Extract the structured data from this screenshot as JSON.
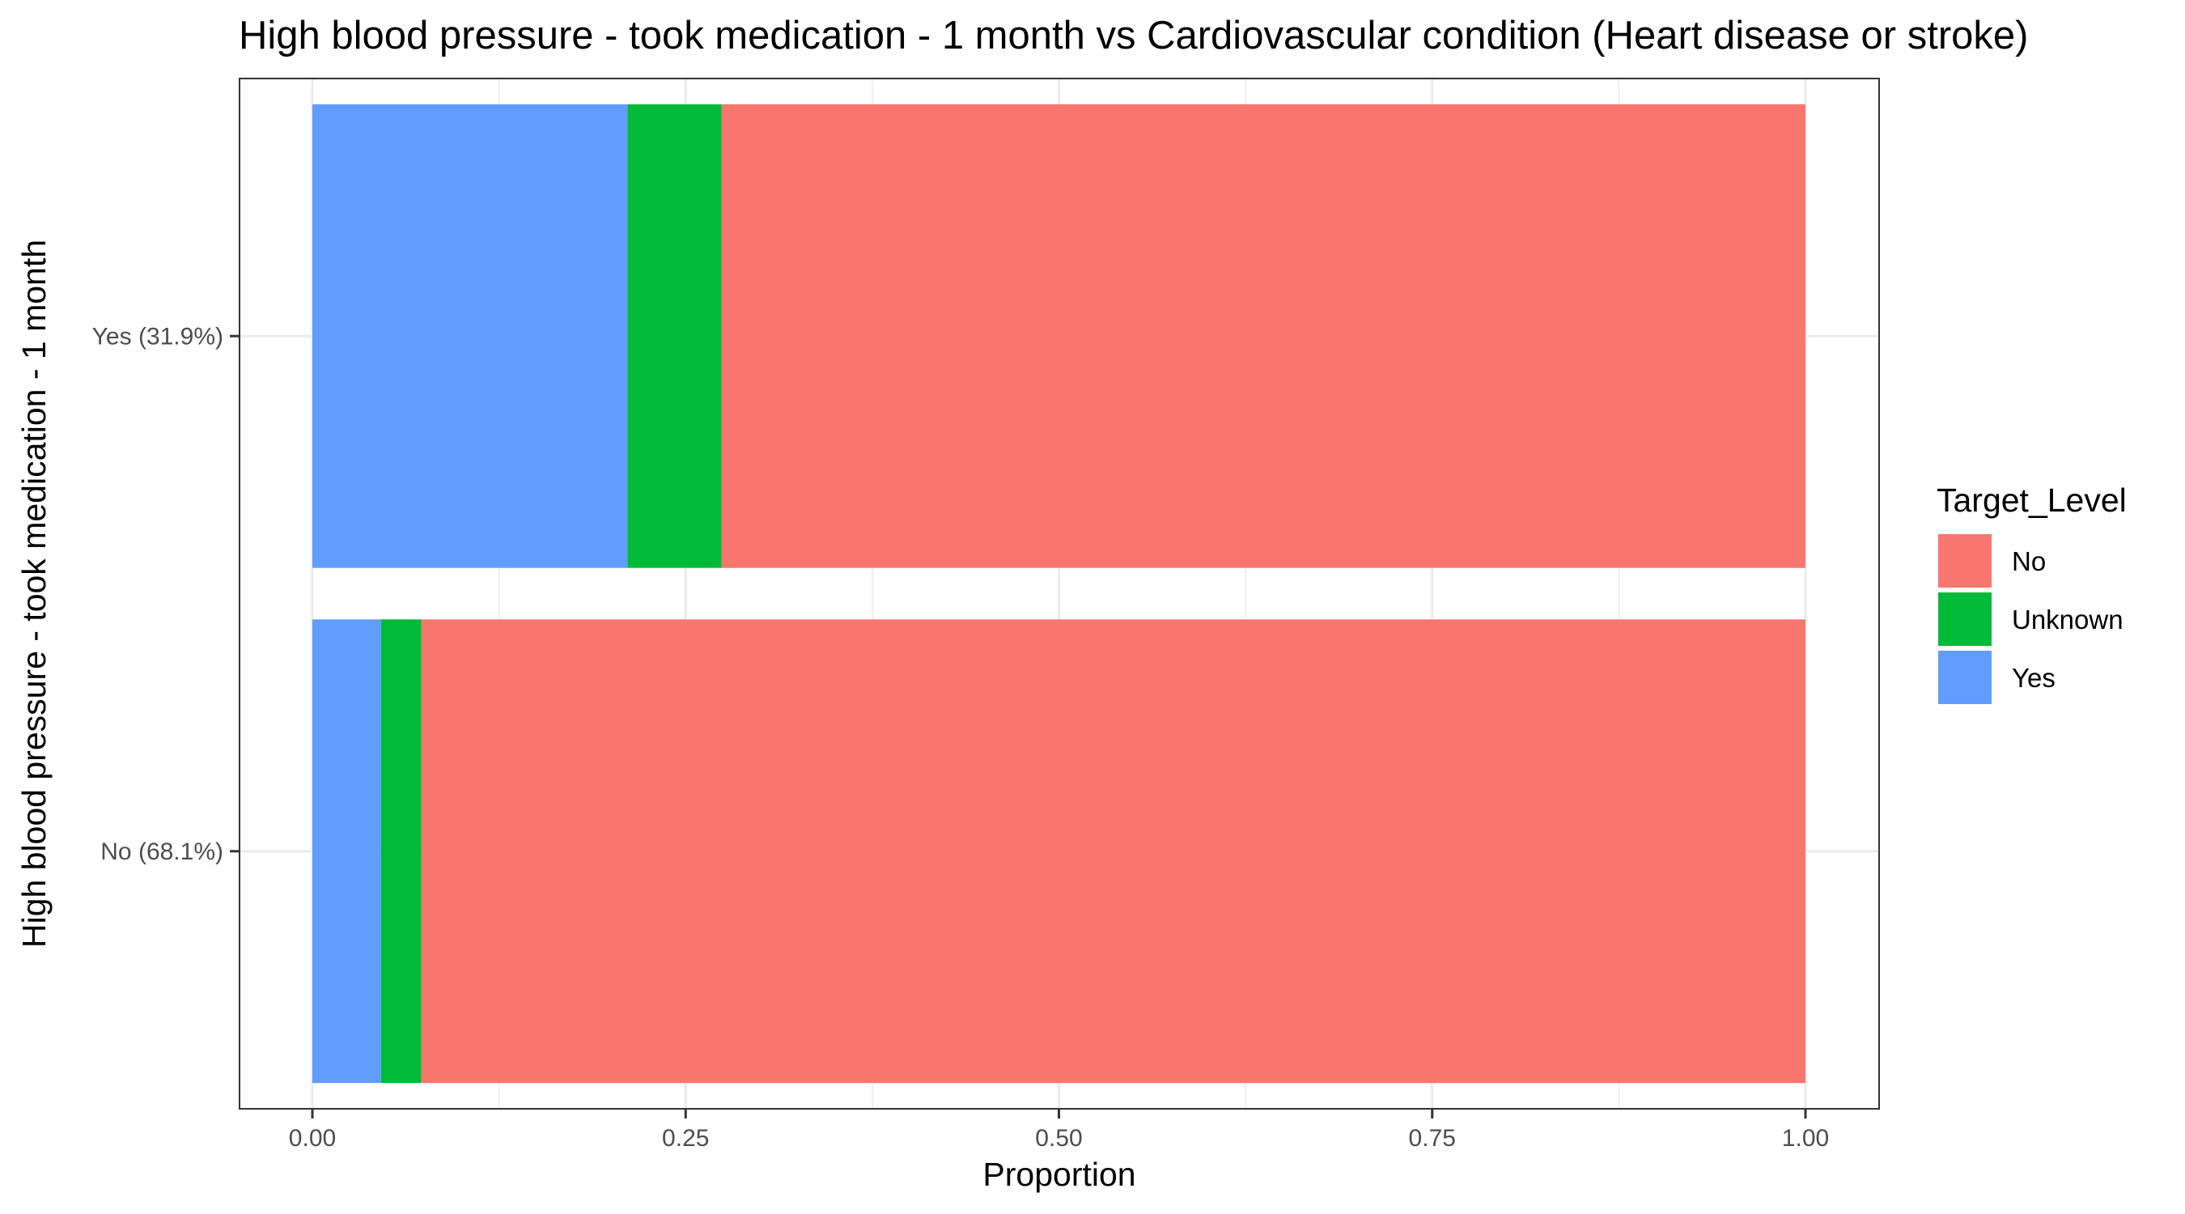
{
  "chart_data": {
    "type": "bar",
    "orientation": "horizontal",
    "stacked": true,
    "title": "High blood pressure - took medication - 1 month vs Cardiovascular condition (Heart disease or stroke)",
    "xlabel": "Proportion",
    "ylabel": "High blood pressure - took medication - 1 month",
    "xlim": [
      0,
      1
    ],
    "xticks": [
      0,
      0.25,
      0.5,
      0.75,
      1
    ],
    "xtick_labels": [
      "0.00",
      "0.25",
      "0.50",
      "0.75",
      "1.00"
    ],
    "categories": [
      "No (68.1%)",
      "Yes (31.9%)"
    ],
    "stack_order": [
      "Yes",
      "Unknown",
      "No"
    ],
    "series": [
      {
        "name": "No",
        "color": "#F8766D",
        "values": [
          0.927,
          0.726
        ]
      },
      {
        "name": "Unknown",
        "color": "#00BA38",
        "values": [
          0.027,
          0.063
        ]
      },
      {
        "name": "Yes",
        "color": "#619CFF",
        "values": [
          0.046,
          0.211
        ]
      }
    ],
    "legend": {
      "title": "Target_Level",
      "position": "right",
      "entries": [
        "No",
        "Unknown",
        "Yes"
      ]
    },
    "grid": true
  }
}
